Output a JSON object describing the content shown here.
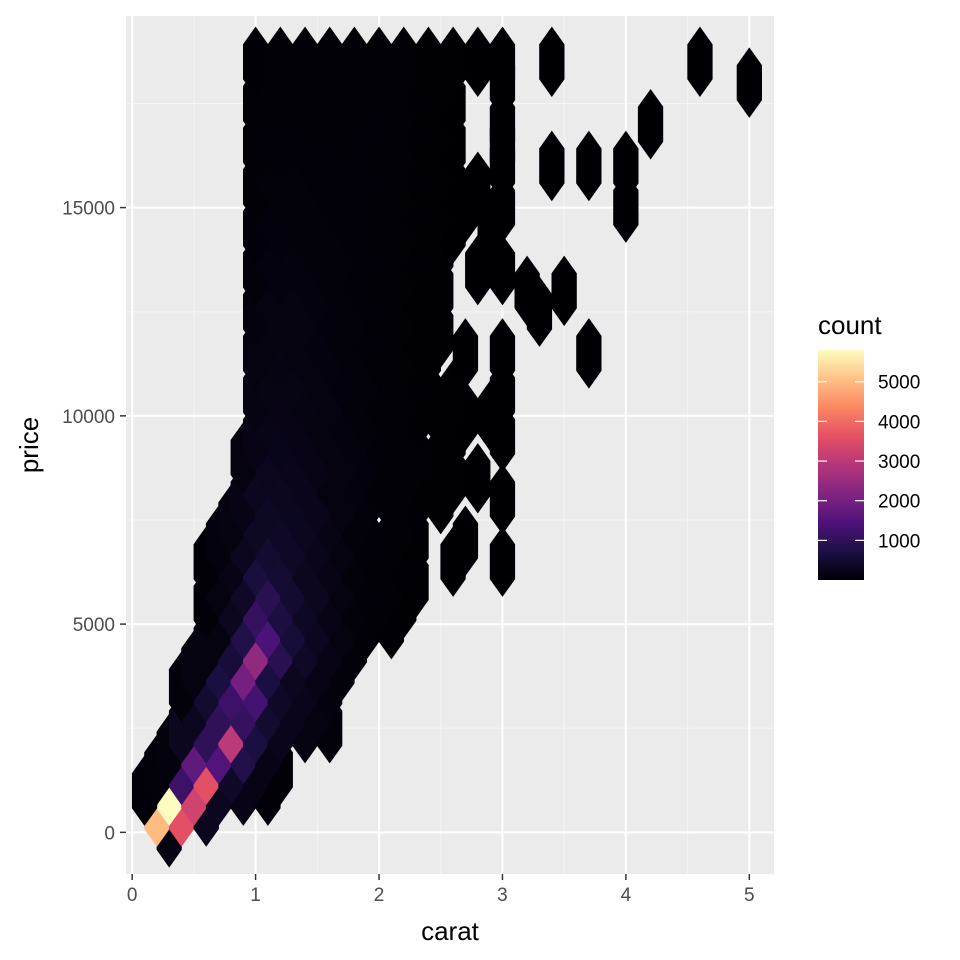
{
  "chart_data": {
    "type": "heatmap",
    "subtype": "hexbin",
    "xlabel": "carat",
    "ylabel": "price",
    "xlim": [
      -0.05,
      5.2
    ],
    "ylim": [
      -1000,
      19600
    ],
    "x_ticks": [
      0,
      1,
      2,
      3,
      4,
      5
    ],
    "y_ticks": [
      0,
      5000,
      10000,
      15000
    ],
    "x_tick_labels": [
      "0",
      "1",
      "2",
      "3",
      "4",
      "5"
    ],
    "y_tick_labels": [
      "0",
      "5000",
      "10000",
      "15000"
    ],
    "grid": true,
    "legend": {
      "title": "count",
      "placement": "right",
      "breaks": [
        1000,
        2000,
        3000,
        4000,
        5000
      ],
      "labels": [
        "1000",
        "2000",
        "3000",
        "4000",
        "5000"
      ],
      "range": [
        1,
        5800
      ],
      "palette": "magma",
      "stops": [
        "#000004",
        "#1c1044",
        "#4f127b",
        "#812581",
        "#b5367a",
        "#e55064",
        "#fb8761",
        "#fec287",
        "#fcfdbf"
      ]
    },
    "colors": {
      "panel": "#ebebeb",
      "grid_major": "#ffffff",
      "grid_minor": "#f5f5f5",
      "tick_text": "#4d4d4d"
    },
    "hex_size": {
      "dx": 0.2,
      "dy": 1250
    },
    "hexes": [
      [
        0.3,
        0,
        120
      ],
      [
        0.2,
        500,
        5000
      ],
      [
        0.4,
        500,
        3600
      ],
      [
        0.6,
        500,
        300
      ],
      [
        0.3,
        1000,
        5800
      ],
      [
        0.5,
        1000,
        3300
      ],
      [
        0.7,
        1000,
        300
      ],
      [
        0.9,
        1000,
        200
      ],
      [
        1.1,
        1000,
        60
      ],
      [
        0.1,
        1000,
        60
      ],
      [
        0.2,
        1500,
        80
      ],
      [
        0.4,
        1500,
        1200
      ],
      [
        0.6,
        1500,
        3600
      ],
      [
        0.8,
        1500,
        400
      ],
      [
        1.0,
        1500,
        200
      ],
      [
        1.2,
        1500,
        50
      ],
      [
        0.3,
        2000,
        100
      ],
      [
        0.5,
        2000,
        1700
      ],
      [
        0.7,
        2000,
        1500
      ],
      [
        0.9,
        2000,
        800
      ],
      [
        1.1,
        2000,
        200
      ],
      [
        0.4,
        2500,
        300
      ],
      [
        0.6,
        2500,
        1000
      ],
      [
        0.8,
        2500,
        3000
      ],
      [
        1.0,
        2500,
        700
      ],
      [
        1.2,
        2500,
        250
      ],
      [
        1.4,
        2500,
        150
      ],
      [
        1.6,
        2500,
        80
      ],
      [
        0.5,
        3000,
        300
      ],
      [
        0.7,
        3000,
        1000
      ],
      [
        0.9,
        3000,
        1100
      ],
      [
        1.1,
        3000,
        500
      ],
      [
        1.3,
        3000,
        250
      ],
      [
        1.5,
        3000,
        120
      ],
      [
        0.4,
        3500,
        80
      ],
      [
        0.6,
        3500,
        500
      ],
      [
        0.8,
        3500,
        1200
      ],
      [
        1.0,
        3500,
        1300
      ],
      [
        1.2,
        3500,
        400
      ],
      [
        1.4,
        3500,
        250
      ],
      [
        1.6,
        3500,
        100
      ],
      [
        0.5,
        4000,
        150
      ],
      [
        0.7,
        4000,
        700
      ],
      [
        0.9,
        4000,
        2000
      ],
      [
        1.1,
        4000,
        700
      ],
      [
        1.3,
        4000,
        300
      ],
      [
        1.5,
        4000,
        200
      ],
      [
        1.7,
        4000,
        80
      ],
      [
        0.6,
        4500,
        120
      ],
      [
        0.8,
        4500,
        600
      ],
      [
        1.0,
        4500,
        2400
      ],
      [
        1.2,
        4500,
        900
      ],
      [
        1.4,
        4500,
        400
      ],
      [
        1.6,
        4500,
        200
      ],
      [
        1.8,
        4500,
        80
      ],
      [
        0.7,
        5000,
        150
      ],
      [
        0.9,
        5000,
        800
      ],
      [
        1.1,
        5000,
        1400
      ],
      [
        1.3,
        5000,
        600
      ],
      [
        1.5,
        5000,
        300
      ],
      [
        1.7,
        5000,
        120
      ],
      [
        1.9,
        5000,
        40
      ],
      [
        2.1,
        5000,
        20
      ],
      [
        0.6,
        5500,
        60
      ],
      [
        0.8,
        5500,
        300
      ],
      [
        1.0,
        5500,
        1100
      ],
      [
        1.2,
        5500,
        700
      ],
      [
        1.4,
        5500,
        350
      ],
      [
        1.6,
        5500,
        200
      ],
      [
        1.8,
        5500,
        80
      ],
      [
        2.0,
        5500,
        30
      ],
      [
        2.2,
        5500,
        10
      ],
      [
        0.7,
        6000,
        120
      ],
      [
        0.9,
        6000,
        400
      ],
      [
        1.1,
        6000,
        900
      ],
      [
        1.3,
        6000,
        500
      ],
      [
        1.5,
        6000,
        300
      ],
      [
        1.7,
        6000,
        150
      ],
      [
        1.9,
        6000,
        60
      ],
      [
        2.1,
        6000,
        30
      ],
      [
        2.3,
        6000,
        10
      ],
      [
        0.6,
        6500,
        50
      ],
      [
        0.8,
        6500,
        200
      ],
      [
        1.0,
        6500,
        650
      ],
      [
        1.2,
        6500,
        550
      ],
      [
        1.4,
        6500,
        300
      ],
      [
        1.6,
        6500,
        200
      ],
      [
        1.8,
        6500,
        80
      ],
      [
        2.0,
        6500,
        40
      ],
      [
        2.2,
        6500,
        20
      ],
      [
        2.6,
        6500,
        5
      ],
      [
        3.0,
        6500,
        3
      ],
      [
        0.7,
        7000,
        100
      ],
      [
        0.9,
        7000,
        300
      ],
      [
        1.1,
        7000,
        500
      ],
      [
        1.3,
        7000,
        400
      ],
      [
        1.5,
        7000,
        250
      ],
      [
        1.7,
        7000,
        150
      ],
      [
        1.9,
        7000,
        60
      ],
      [
        2.1,
        7000,
        30
      ],
      [
        2.3,
        7000,
        10
      ],
      [
        2.7,
        7000,
        4
      ],
      [
        0.8,
        7500,
        120
      ],
      [
        1.0,
        7500,
        350
      ],
      [
        1.2,
        7500,
        400
      ],
      [
        1.4,
        7500,
        300
      ],
      [
        1.6,
        7500,
        180
      ],
      [
        1.8,
        7500,
        80
      ],
      [
        2.2,
        7500,
        30
      ],
      [
        0.9,
        8000,
        200
      ],
      [
        1.1,
        8000,
        350
      ],
      [
        1.3,
        8000,
        320
      ],
      [
        1.5,
        8000,
        250
      ],
      [
        1.7,
        8000,
        150
      ],
      [
        1.9,
        8000,
        80
      ],
      [
        2.1,
        8000,
        40
      ],
      [
        2.3,
        8000,
        20
      ],
      [
        2.5,
        8000,
        10
      ],
      [
        3.0,
        8000,
        3
      ],
      [
        1.0,
        8500,
        300
      ],
      [
        1.2,
        8500,
        300
      ],
      [
        1.4,
        8500,
        250
      ],
      [
        1.6,
        8500,
        150
      ],
      [
        1.8,
        8500,
        100
      ],
      [
        2.0,
        8500,
        50
      ],
      [
        2.2,
        8500,
        30
      ],
      [
        2.4,
        8500,
        15
      ],
      [
        2.6,
        8500,
        8
      ],
      [
        2.8,
        8500,
        4
      ],
      [
        0.9,
        9000,
        120
      ],
      [
        1.1,
        9000,
        280
      ],
      [
        1.3,
        9000,
        250
      ],
      [
        1.5,
        9000,
        200
      ],
      [
        1.7,
        9000,
        140
      ],
      [
        1.9,
        9000,
        90
      ],
      [
        2.1,
        9000,
        50
      ],
      [
        2.3,
        9000,
        30
      ],
      [
        2.5,
        9000,
        15
      ],
      [
        1.0,
        9500,
        200
      ],
      [
        1.2,
        9500,
        240
      ],
      [
        1.4,
        9500,
        200
      ],
      [
        1.6,
        9500,
        140
      ],
      [
        1.8,
        9500,
        100
      ],
      [
        2.0,
        9500,
        60
      ],
      [
        2.2,
        9500,
        30
      ],
      [
        2.6,
        9500,
        10
      ],
      [
        3.0,
        9500,
        4
      ],
      [
        1.1,
        10000,
        220
      ],
      [
        1.3,
        10000,
        200
      ],
      [
        1.5,
        10000,
        150
      ],
      [
        1.7,
        10000,
        100
      ],
      [
        1.9,
        10000,
        70
      ],
      [
        2.1,
        10000,
        40
      ],
      [
        2.3,
        10000,
        20
      ],
      [
        2.5,
        10000,
        10
      ],
      [
        2.7,
        10000,
        6
      ],
      [
        2.9,
        10000,
        4
      ],
      [
        1.0,
        10500,
        160
      ],
      [
        1.2,
        10500,
        200
      ],
      [
        1.4,
        10500,
        160
      ],
      [
        1.6,
        10500,
        120
      ],
      [
        1.8,
        10500,
        80
      ],
      [
        2.0,
        10500,
        50
      ],
      [
        2.2,
        10500,
        30
      ],
      [
        2.4,
        10500,
        15
      ],
      [
        2.6,
        10500,
        8
      ],
      [
        3.0,
        10500,
        4
      ],
      [
        1.1,
        11000,
        180
      ],
      [
        1.3,
        11000,
        170
      ],
      [
        1.5,
        11000,
        130
      ],
      [
        1.7,
        11000,
        90
      ],
      [
        1.9,
        11000,
        70
      ],
      [
        2.1,
        11000,
        40
      ],
      [
        2.3,
        11000,
        20
      ],
      [
        1.0,
        11500,
        120
      ],
      [
        1.2,
        11500,
        160
      ],
      [
        1.4,
        11500,
        140
      ],
      [
        1.6,
        11500,
        100
      ],
      [
        1.8,
        11500,
        70
      ],
      [
        2.0,
        11500,
        50
      ],
      [
        2.2,
        11500,
        25
      ],
      [
        2.4,
        11500,
        10
      ],
      [
        2.7,
        11500,
        5
      ],
      [
        3.0,
        11500,
        4
      ],
      [
        3.7,
        11500,
        2
      ],
      [
        1.1,
        12000,
        150
      ],
      [
        1.3,
        12000,
        140
      ],
      [
        1.5,
        12000,
        110
      ],
      [
        1.7,
        12000,
        80
      ],
      [
        1.9,
        12000,
        60
      ],
      [
        2.1,
        12000,
        35
      ],
      [
        2.3,
        12000,
        15
      ],
      [
        2.5,
        12000,
        8
      ],
      [
        1.0,
        12500,
        100
      ],
      [
        1.2,
        12500,
        130
      ],
      [
        1.4,
        12500,
        120
      ],
      [
        1.6,
        12500,
        90
      ],
      [
        1.8,
        12500,
        70
      ],
      [
        2.0,
        12500,
        45
      ],
      [
        2.2,
        12500,
        25
      ],
      [
        2.4,
        12500,
        12
      ],
      [
        3.3,
        12500,
        2
      ],
      [
        1.1,
        13000,
        130
      ],
      [
        1.3,
        13000,
        120
      ],
      [
        1.5,
        13000,
        100
      ],
      [
        1.7,
        13000,
        75
      ],
      [
        1.9,
        13000,
        60
      ],
      [
        2.1,
        13000,
        35
      ],
      [
        2.3,
        13000,
        15
      ],
      [
        2.5,
        13000,
        8
      ],
      [
        3.2,
        13000,
        2
      ],
      [
        3.5,
        13000,
        2
      ],
      [
        1.0,
        13500,
        80
      ],
      [
        1.2,
        13500,
        110
      ],
      [
        1.4,
        13500,
        100
      ],
      [
        1.6,
        13500,
        80
      ],
      [
        1.8,
        13500,
        65
      ],
      [
        2.0,
        13500,
        45
      ],
      [
        2.2,
        13500,
        25
      ],
      [
        2.4,
        13500,
        12
      ],
      [
        2.8,
        13500,
        3
      ],
      [
        3.0,
        13500,
        3
      ],
      [
        1.1,
        14000,
        110
      ],
      [
        1.3,
        14000,
        100
      ],
      [
        1.5,
        14000,
        85
      ],
      [
        1.7,
        14000,
        70
      ],
      [
        1.9,
        14000,
        55
      ],
      [
        2.1,
        14000,
        35
      ],
      [
        2.3,
        14000,
        18
      ],
      [
        2.5,
        14000,
        8
      ],
      [
        1.0,
        14500,
        60
      ],
      [
        1.2,
        14500,
        90
      ],
      [
        1.4,
        14500,
        85
      ],
      [
        1.6,
        14500,
        70
      ],
      [
        1.8,
        14500,
        60
      ],
      [
        2.0,
        14500,
        45
      ],
      [
        2.2,
        14500,
        25
      ],
      [
        2.4,
        14500,
        12
      ],
      [
        2.6,
        14500,
        5
      ],
      [
        2.9,
        14500,
        3
      ],
      [
        1.1,
        15000,
        90
      ],
      [
        1.3,
        15000,
        85
      ],
      [
        1.5,
        15000,
        75
      ],
      [
        1.7,
        15000,
        65
      ],
      [
        1.9,
        15000,
        55
      ],
      [
        2.1,
        15000,
        35
      ],
      [
        2.3,
        15000,
        18
      ],
      [
        2.5,
        15000,
        8
      ],
      [
        2.7,
        15000,
        5
      ],
      [
        3.0,
        15000,
        3
      ],
      [
        4.0,
        15000,
        1
      ],
      [
        1.0,
        15500,
        50
      ],
      [
        1.2,
        15500,
        75
      ],
      [
        1.4,
        15500,
        70
      ],
      [
        1.6,
        15500,
        60
      ],
      [
        1.8,
        15500,
        55
      ],
      [
        2.0,
        15500,
        45
      ],
      [
        2.2,
        15500,
        25
      ],
      [
        2.4,
        15500,
        12
      ],
      [
        2.6,
        15500,
        6
      ],
      [
        2.8,
        15500,
        4
      ],
      [
        1.1,
        16000,
        75
      ],
      [
        1.3,
        16000,
        70
      ],
      [
        1.5,
        16000,
        65
      ],
      [
        1.7,
        16000,
        60
      ],
      [
        1.9,
        16000,
        55
      ],
      [
        2.1,
        16000,
        40
      ],
      [
        2.3,
        16000,
        20
      ],
      [
        2.5,
        16000,
        8
      ],
      [
        3.0,
        16000,
        3
      ],
      [
        3.4,
        16000,
        2
      ],
      [
        3.7,
        16000,
        2
      ],
      [
        4.0,
        16000,
        1
      ],
      [
        1.0,
        16500,
        40
      ],
      [
        1.2,
        16500,
        65
      ],
      [
        1.4,
        16500,
        60
      ],
      [
        1.6,
        16500,
        55
      ],
      [
        1.8,
        16500,
        55
      ],
      [
        2.0,
        16500,
        50
      ],
      [
        2.2,
        16500,
        30
      ],
      [
        2.4,
        16500,
        12
      ],
      [
        2.6,
        16500,
        6
      ],
      [
        3.0,
        16500,
        3
      ],
      [
        1.1,
        17000,
        55
      ],
      [
        1.3,
        17000,
        55
      ],
      [
        1.5,
        17000,
        50
      ],
      [
        1.7,
        17000,
        50
      ],
      [
        1.9,
        17000,
        55
      ],
      [
        2.1,
        17000,
        45
      ],
      [
        2.3,
        17000,
        20
      ],
      [
        2.5,
        17000,
        8
      ],
      [
        3.0,
        17000,
        3
      ],
      [
        4.2,
        17000,
        1
      ],
      [
        1.0,
        17500,
        30
      ],
      [
        1.2,
        17500,
        50
      ],
      [
        1.4,
        17500,
        45
      ],
      [
        1.6,
        17500,
        45
      ],
      [
        1.8,
        17500,
        50
      ],
      [
        2.0,
        17500,
        55
      ],
      [
        2.2,
        17500,
        30
      ],
      [
        2.4,
        17500,
        12
      ],
      [
        2.6,
        17500,
        5
      ],
      [
        1.1,
        18000,
        40
      ],
      [
        1.3,
        18000,
        40
      ],
      [
        1.5,
        18000,
        40
      ],
      [
        1.7,
        18000,
        40
      ],
      [
        1.9,
        18000,
        50
      ],
      [
        2.1,
        18000,
        45
      ],
      [
        2.3,
        18000,
        20
      ],
      [
        2.5,
        18000,
        8
      ],
      [
        3.0,
        18000,
        3
      ],
      [
        5.0,
        18000,
        1
      ],
      [
        1.0,
        18500,
        20
      ],
      [
        1.2,
        18500,
        30
      ],
      [
        1.4,
        18500,
        30
      ],
      [
        1.6,
        18500,
        30
      ],
      [
        1.8,
        18500,
        35
      ],
      [
        2.0,
        18500,
        40
      ],
      [
        2.2,
        18500,
        30
      ],
      [
        2.4,
        18500,
        15
      ],
      [
        2.6,
        18500,
        8
      ],
      [
        2.8,
        18500,
        5
      ],
      [
        3.0,
        18500,
        3
      ],
      [
        3.4,
        18500,
        1
      ],
      [
        4.6,
        18500,
        1
      ]
    ]
  }
}
